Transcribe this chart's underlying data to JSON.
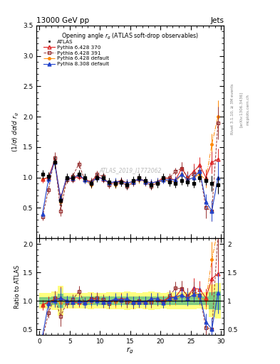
{
  "title": "13000 GeV pp",
  "title_right": "Jets",
  "panel_title": "Opening angle $r_g$ (ATLAS soft-drop observables)",
  "ylabel_main": "$(1/\\sigma)$ $d\\sigma/d$ $r_g$",
  "ylabel_ratio": "Ratio to ATLAS",
  "xlabel": "$r_g$",
  "watermark": "ATLAS_2019_I1772062",
  "rivet_label": "Rivet 3.1.10, ≥ 3M events",
  "arxiv_label": "[arXiv:1306.3436]",
  "mcplots_label": "mcplots.cern.ch",
  "ylim_main": [
    0.0,
    3.5
  ],
  "ylim_ratio": [
    0.4,
    2.1
  ],
  "xlim": [
    -0.5,
    30.5
  ],
  "x": [
    0.5,
    1.5,
    2.5,
    3.5,
    4.5,
    5.5,
    6.5,
    7.5,
    8.5,
    9.5,
    10.5,
    11.5,
    12.5,
    13.5,
    14.5,
    15.5,
    16.5,
    17.5,
    18.5,
    19.5,
    20.5,
    21.5,
    22.5,
    23.5,
    24.5,
    25.5,
    26.5,
    27.5,
    28.5,
    29.5
  ],
  "atlas_y": [
    1.05,
    1.02,
    1.25,
    0.62,
    1.0,
    1.0,
    1.05,
    1.0,
    0.9,
    1.0,
    1.0,
    0.92,
    0.9,
    0.92,
    0.88,
    0.95,
    1.0,
    0.95,
    0.88,
    0.9,
    1.0,
    0.92,
    0.9,
    0.95,
    0.92,
    0.9,
    1.0,
    0.95,
    0.9,
    0.88
  ],
  "atlas_yerr": [
    0.07,
    0.07,
    0.1,
    0.08,
    0.07,
    0.07,
    0.07,
    0.07,
    0.07,
    0.07,
    0.07,
    0.07,
    0.07,
    0.07,
    0.07,
    0.07,
    0.07,
    0.07,
    0.07,
    0.07,
    0.07,
    0.07,
    0.07,
    0.07,
    0.07,
    0.07,
    0.07,
    0.07,
    0.13,
    0.14
  ],
  "py6_370_y": [
    0.97,
    1.0,
    1.28,
    0.65,
    1.0,
    0.97,
    1.02,
    0.97,
    0.93,
    1.02,
    0.97,
    0.91,
    0.92,
    0.95,
    0.91,
    0.93,
    0.98,
    0.93,
    0.91,
    0.93,
    1.0,
    0.98,
    0.96,
    1.15,
    1.0,
    1.1,
    1.2,
    1.0,
    1.25,
    1.3
  ],
  "py6_370_yerr": [
    0.06,
    0.06,
    0.1,
    0.09,
    0.06,
    0.06,
    0.06,
    0.06,
    0.06,
    0.06,
    0.06,
    0.06,
    0.06,
    0.06,
    0.06,
    0.06,
    0.06,
    0.06,
    0.06,
    0.06,
    0.06,
    0.06,
    0.06,
    0.1,
    0.1,
    0.13,
    0.13,
    0.13,
    0.18,
    0.18
  ],
  "py6_391_y": [
    0.35,
    0.8,
    1.32,
    0.45,
    0.96,
    1.02,
    1.22,
    0.96,
    0.93,
    1.05,
    1.02,
    0.88,
    0.91,
    0.93,
    0.86,
    0.91,
    1.0,
    0.93,
    0.86,
    0.91,
    0.96,
    1.0,
    1.1,
    1.15,
    1.0,
    1.05,
    1.1,
    0.5,
    0.45,
    1.9
  ],
  "py6_391_yerr": [
    0.06,
    0.06,
    0.1,
    0.09,
    0.06,
    0.06,
    0.06,
    0.06,
    0.06,
    0.06,
    0.06,
    0.06,
    0.06,
    0.06,
    0.06,
    0.06,
    0.06,
    0.06,
    0.06,
    0.06,
    0.06,
    0.06,
    0.06,
    0.1,
    0.1,
    0.13,
    0.13,
    0.17,
    0.17,
    0.27
  ],
  "py6_def_y": [
    0.97,
    1.0,
    1.25,
    0.6,
    0.98,
    0.98,
    1.05,
    0.96,
    0.88,
    1.0,
    1.0,
    0.91,
    0.88,
    0.91,
    0.88,
    0.91,
    0.96,
    0.91,
    0.88,
    0.91,
    0.96,
    0.93,
    0.93,
    1.05,
    0.96,
    1.0,
    1.05,
    0.96,
    1.55,
    2.0
  ],
  "py6_def_yerr": [
    0.06,
    0.06,
    0.09,
    0.07,
    0.06,
    0.06,
    0.06,
    0.06,
    0.06,
    0.06,
    0.06,
    0.06,
    0.06,
    0.06,
    0.06,
    0.06,
    0.06,
    0.06,
    0.06,
    0.06,
    0.06,
    0.06,
    0.06,
    0.09,
    0.09,
    0.1,
    0.1,
    0.13,
    0.17,
    0.27
  ],
  "py8_def_y": [
    0.4,
    0.97,
    1.25,
    0.65,
    1.0,
    0.98,
    1.05,
    0.96,
    0.91,
    1.0,
    0.98,
    0.91,
    0.93,
    0.93,
    0.91,
    0.93,
    0.98,
    0.93,
    0.91,
    0.93,
    0.96,
    0.96,
    0.96,
    1.05,
    0.96,
    1.0,
    1.1,
    0.6,
    0.45,
    1.0
  ],
  "py8_def_yerr": [
    0.06,
    0.06,
    0.09,
    0.07,
    0.06,
    0.06,
    0.06,
    0.06,
    0.06,
    0.06,
    0.06,
    0.06,
    0.06,
    0.06,
    0.06,
    0.06,
    0.06,
    0.06,
    0.06,
    0.06,
    0.06,
    0.06,
    0.06,
    0.09,
    0.09,
    0.1,
    0.13,
    0.13,
    0.17,
    0.27
  ],
  "color_py6_370": "#dd2222",
  "color_py6_391": "#993333",
  "color_py6_def": "#ff8800",
  "color_py8_def": "#2244cc",
  "color_atlas": "#000000",
  "band_yellow": "#ffff80",
  "band_green": "#80cc80",
  "yticks_main": [
    0.5,
    1.0,
    1.5,
    2.0,
    2.5,
    3.0,
    3.5
  ],
  "yticks_ratio": [
    0.5,
    1.0,
    1.5,
    2.0
  ]
}
